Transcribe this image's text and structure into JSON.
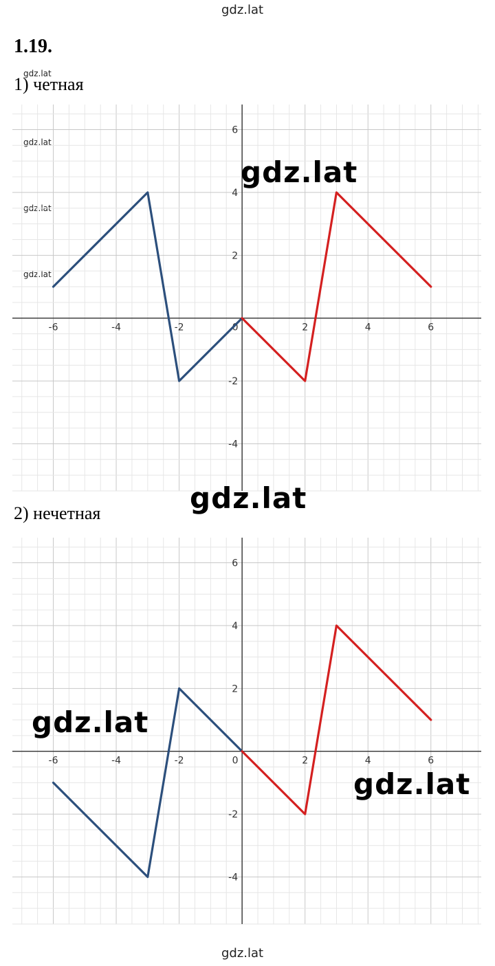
{
  "watermark_text": "gdz.lat",
  "task_number": "1.19.",
  "chart_data": [
    {
      "type": "line",
      "label": "1) четная",
      "xlim": [
        -7.3,
        7.6
      ],
      "ylim": [
        -5.5,
        6.8
      ],
      "grid": true,
      "x_ticks": [
        -6,
        -4,
        -2,
        0,
        2,
        4,
        6
      ],
      "y_ticks": [
        -4,
        -2,
        2,
        4,
        6
      ],
      "series": [
        {
          "color": "#2c4f7c",
          "points": [
            [
              -6,
              1
            ],
            [
              -3,
              4
            ],
            [
              -2,
              -2
            ],
            [
              0,
              0
            ]
          ]
        },
        {
          "color": "#d42020",
          "points": [
            [
              0,
              0
            ],
            [
              2,
              -2
            ],
            [
              3,
              4
            ],
            [
              6,
              1
            ]
          ]
        }
      ]
    },
    {
      "type": "line",
      "label": "2) нечетная",
      "xlim": [
        -7.3,
        7.6
      ],
      "ylim": [
        -5.5,
        6.8
      ],
      "grid": true,
      "x_ticks": [
        -6,
        -4,
        -2,
        0,
        2,
        4,
        6
      ],
      "y_ticks": [
        -4,
        -2,
        2,
        4,
        6
      ],
      "series": [
        {
          "color": "#2c4f7c",
          "points": [
            [
              -6,
              -1
            ],
            [
              -3,
              -4
            ],
            [
              -2,
              2
            ],
            [
              0,
              0
            ]
          ]
        },
        {
          "color": "#d42020",
          "points": [
            [
              0,
              0
            ],
            [
              2,
              -2
            ],
            [
              3,
              4
            ],
            [
              6,
              1
            ]
          ]
        }
      ]
    }
  ]
}
